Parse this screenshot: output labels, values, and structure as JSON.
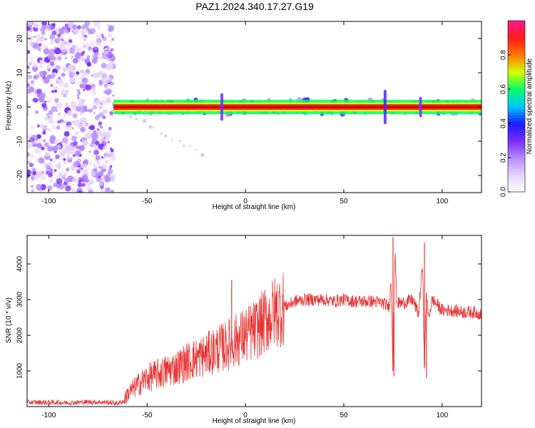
{
  "title": "PAZ1.2024.340.17.27.G19",
  "colors": {
    "snr_line": "#e83535",
    "background": "#ffffff",
    "axis": "#000000",
    "colormap": [
      "#ffffff",
      "#e6d3ff",
      "#b68cff",
      "#7a2cff",
      "#1b1bff",
      "#00c8ff",
      "#00ff66",
      "#d6ff00",
      "#ff7a00",
      "#ff1a1a",
      "#ff1a8c"
    ]
  },
  "chart_data": [
    {
      "type": "heatmap",
      "xlabel": "Height of straight line (km)",
      "ylabel": "Frequency (Hz)",
      "xlim": [
        -111,
        120
      ],
      "ylim": [
        -25,
        25
      ],
      "xticks": [
        -100,
        -50,
        0,
        50,
        100
      ],
      "yticks": [
        -20,
        -10,
        0,
        10,
        20
      ],
      "colorbar": {
        "label": "Normalized spectral amplitude",
        "range": [
          0,
          1
        ],
        "ticks": [
          0.0,
          0.2,
          0.4,
          0.6,
          0.8
        ]
      },
      "regions": [
        {
          "x_range": [
            -111,
            -67
          ],
          "y_range": [
            -25,
            25
          ],
          "amplitude": 0.05,
          "pattern": "scattered noise"
        },
        {
          "x_range": [
            -67,
            120
          ],
          "y_center": 0,
          "half_width": 1.0,
          "amplitude": 1.0,
          "pattern": "carrier line"
        }
      ],
      "features": [
        {
          "x": -12,
          "y": 0,
          "half_width": 4,
          "amplitude": 0.3
        },
        {
          "x": 71,
          "y": 0,
          "half_width": 5,
          "amplitude": 0.35
        },
        {
          "x": 89,
          "y": 0,
          "half_width": 3,
          "amplitude": 0.3
        }
      ]
    },
    {
      "type": "line",
      "xlabel": "Height of straight line (km)",
      "ylabel": "SNR (10 * v/v)",
      "xlim": [
        -111,
        120
      ],
      "ylim": [
        0,
        4800
      ],
      "xticks": [
        -100,
        -50,
        0,
        50,
        100
      ],
      "yticks": [
        1000,
        2000,
        3000,
        4000
      ],
      "grid": false,
      "series": [
        {
          "x": [
            -111,
            -100,
            -90,
            -80,
            -70,
            -65,
            -62,
            -60,
            -55,
            -50,
            -45,
            -40,
            -35,
            -30,
            -25,
            -20,
            -15,
            -10,
            -5,
            0,
            5,
            10,
            15,
            20,
            25,
            30,
            35,
            40,
            45,
            50,
            55,
            60,
            65,
            70,
            73,
            74,
            75,
            76,
            77,
            80,
            85,
            88,
            90,
            91,
            92,
            93,
            95,
            100,
            105,
            110,
            115,
            120
          ],
          "y": [
            120,
            120,
            110,
            130,
            120,
            90,
            150,
            350,
            600,
            800,
            900,
            1000,
            1100,
            1250,
            1350,
            1450,
            1600,
            1700,
            1850,
            2000,
            2150,
            2400,
            2650,
            2800,
            2950,
            3000,
            3000,
            3000,
            2950,
            3000,
            2950,
            2950,
            2950,
            2900,
            2800,
            3500,
            1000,
            4300,
            2900,
            2900,
            3000,
            2600,
            4000,
            1100,
            3200,
            2500,
            3000,
            2700,
            2700,
            2650,
            2650,
            2600
          ]
        }
      ],
      "spikes": [
        {
          "x": -7,
          "y": 3550
        },
        {
          "x": 75,
          "y": 4750
        },
        {
          "x": 75.5,
          "y": 850
        },
        {
          "x": 91,
          "y": 4600
        },
        {
          "x": 92,
          "y": 800
        }
      ]
    }
  ]
}
